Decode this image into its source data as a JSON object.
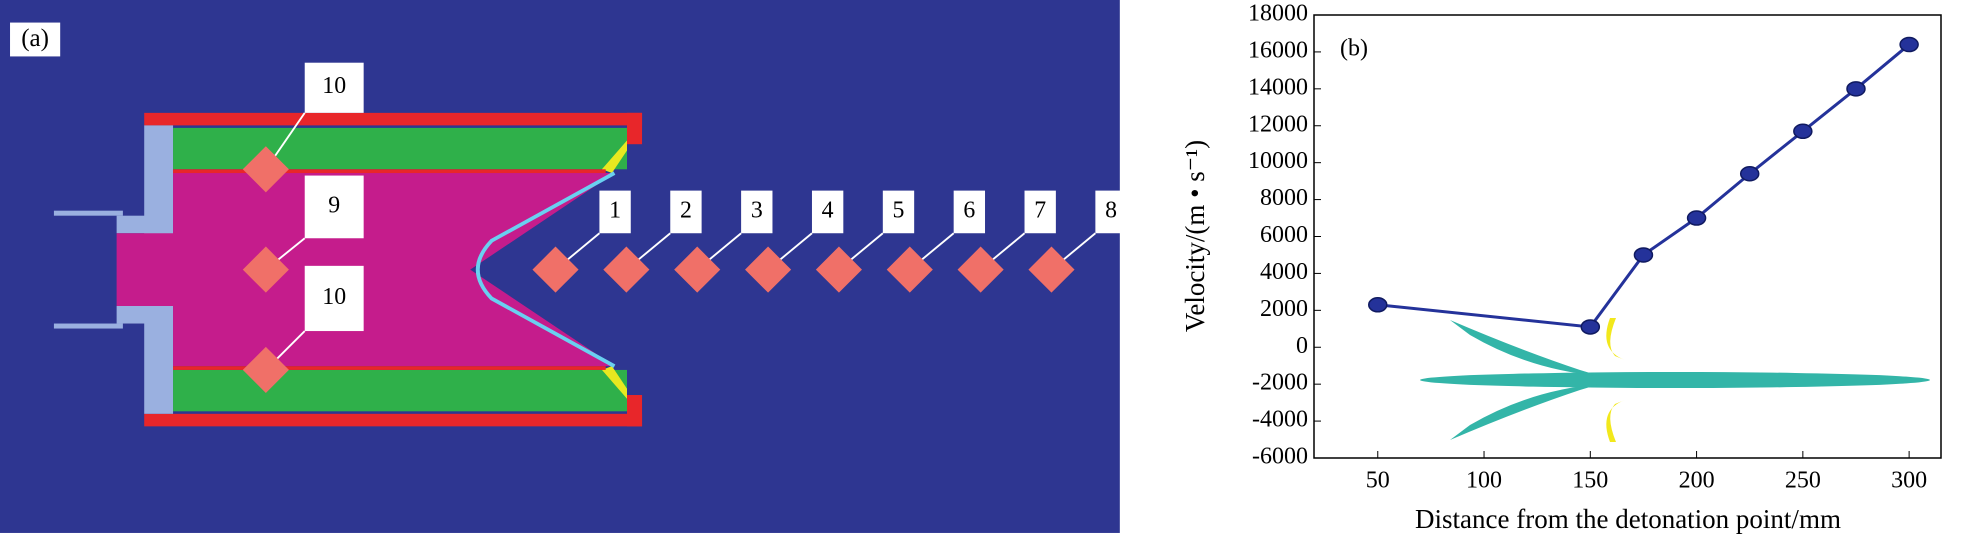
{
  "panel_a": {
    "label": "(a)",
    "callouts": [
      "10",
      "9",
      "10",
      "1",
      "2",
      "3",
      "4",
      "5",
      "6",
      "7",
      "8"
    ]
  },
  "chart_data": {
    "type": "line",
    "panel_label": "(b)",
    "x_label": "Distance from the detonation point/mm",
    "y_label": "Velocity/(m • s⁻¹)",
    "x": [
      50,
      150,
      175,
      200,
      225,
      250,
      275,
      300
    ],
    "series": [
      {
        "color": "#24329a",
        "values": [
          2300,
          1100,
          5000,
          7000,
          9400,
          11700,
          14000,
          16400
        ]
      }
    ],
    "xlim": [
      20,
      315
    ],
    "ylim": [
      -6000,
      18000
    ],
    "xticks": [
      50,
      100,
      150,
      200,
      250,
      300
    ],
    "yticks": [
      -6000,
      -4000,
      -2000,
      0,
      2000,
      4000,
      6000,
      8000,
      10000,
      12000,
      14000,
      16000,
      18000
    ]
  }
}
